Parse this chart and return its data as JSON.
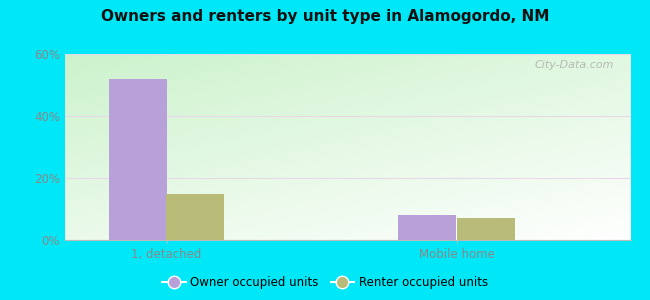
{
  "title": "Owners and renters by unit type in Alamogordo, NM",
  "categories": [
    "1, detached",
    "Mobile home"
  ],
  "owner_values": [
    52,
    8
  ],
  "renter_values": [
    15,
    7
  ],
  "owner_color": "#b8a0d8",
  "renter_color": "#b8bc78",
  "ylim": [
    0,
    60
  ],
  "yticks": [
    0,
    20,
    40,
    60
  ],
  "ytick_labels": [
    "0%",
    "20%",
    "40%",
    "60%"
  ],
  "bg_color_topleft": "#c8e8c0",
  "bg_color_center": "#f0faf0",
  "bg_color_white": "#f8fff8",
  "outer_background": "#00e8f8",
  "bar_width": 0.4,
  "group_positions": [
    0.25,
    0.68
  ],
  "legend_labels": [
    "Owner occupied units",
    "Renter occupied units"
  ],
  "watermark": "City-Data.com",
  "grid_color": "#e8d8e8",
  "tick_label_color": "#888888"
}
